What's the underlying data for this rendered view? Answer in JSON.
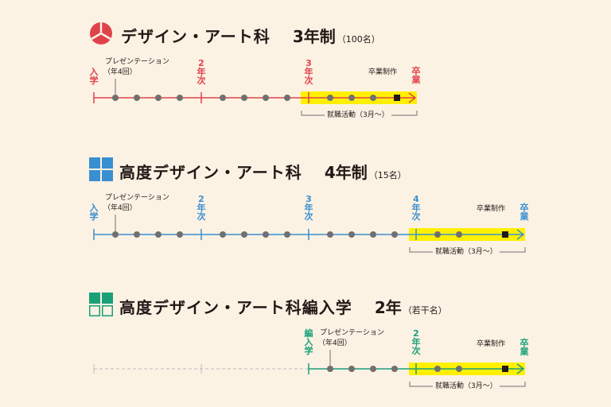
{
  "courses": [
    {
      "name": "デザイン・アート科",
      "years": "3年制",
      "quota": "（100名）",
      "color": "#e0424a",
      "icon": "three-segment-circle-icon",
      "start_label": [
        "入",
        "学"
      ],
      "year_labels": [
        [
          "2",
          "年",
          "次"
        ],
        [
          "3",
          "年",
          "次"
        ]
      ],
      "end_label": [
        "卒",
        "業"
      ],
      "presentation": "プレゼンテーション",
      "presentation_freq": "（年4回）",
      "graduation_work": "卒業制作",
      "job_hunting": "就職活動（3月〜）"
    },
    {
      "name": "高度デザイン・アート科",
      "years": "4年制",
      "quota": "（15名）",
      "color": "#3a8fd0",
      "icon": "four-square-grid-icon",
      "start_label": [
        "入",
        "学"
      ],
      "year_labels": [
        [
          "2",
          "年",
          "次"
        ],
        [
          "3",
          "年",
          "次"
        ],
        [
          "4",
          "年",
          "次"
        ]
      ],
      "end_label": [
        "卒",
        "業"
      ],
      "presentation": "プレゼンテーション",
      "presentation_freq": "（年4回）",
      "graduation_work": "卒業制作",
      "job_hunting": "就職活動（3月〜）"
    },
    {
      "name": "高度デザイン・アート科編入学",
      "years": "2年",
      "quota": "（若干名）",
      "color": "#1aa079",
      "icon": "two-filled-two-outlined-squares-icon",
      "start_label": [
        "編",
        "入",
        "学"
      ],
      "year_labels": [
        [
          "2",
          "年",
          "次"
        ]
      ],
      "end_label": [
        "卒",
        "業"
      ],
      "presentation": "プレゼンテーション",
      "presentation_freq": "（年4回）",
      "graduation_work": "卒業制作",
      "job_hunting": "就職活動（3月〜）"
    }
  ],
  "highlight_color": "#fff000",
  "track_color": "#707070"
}
